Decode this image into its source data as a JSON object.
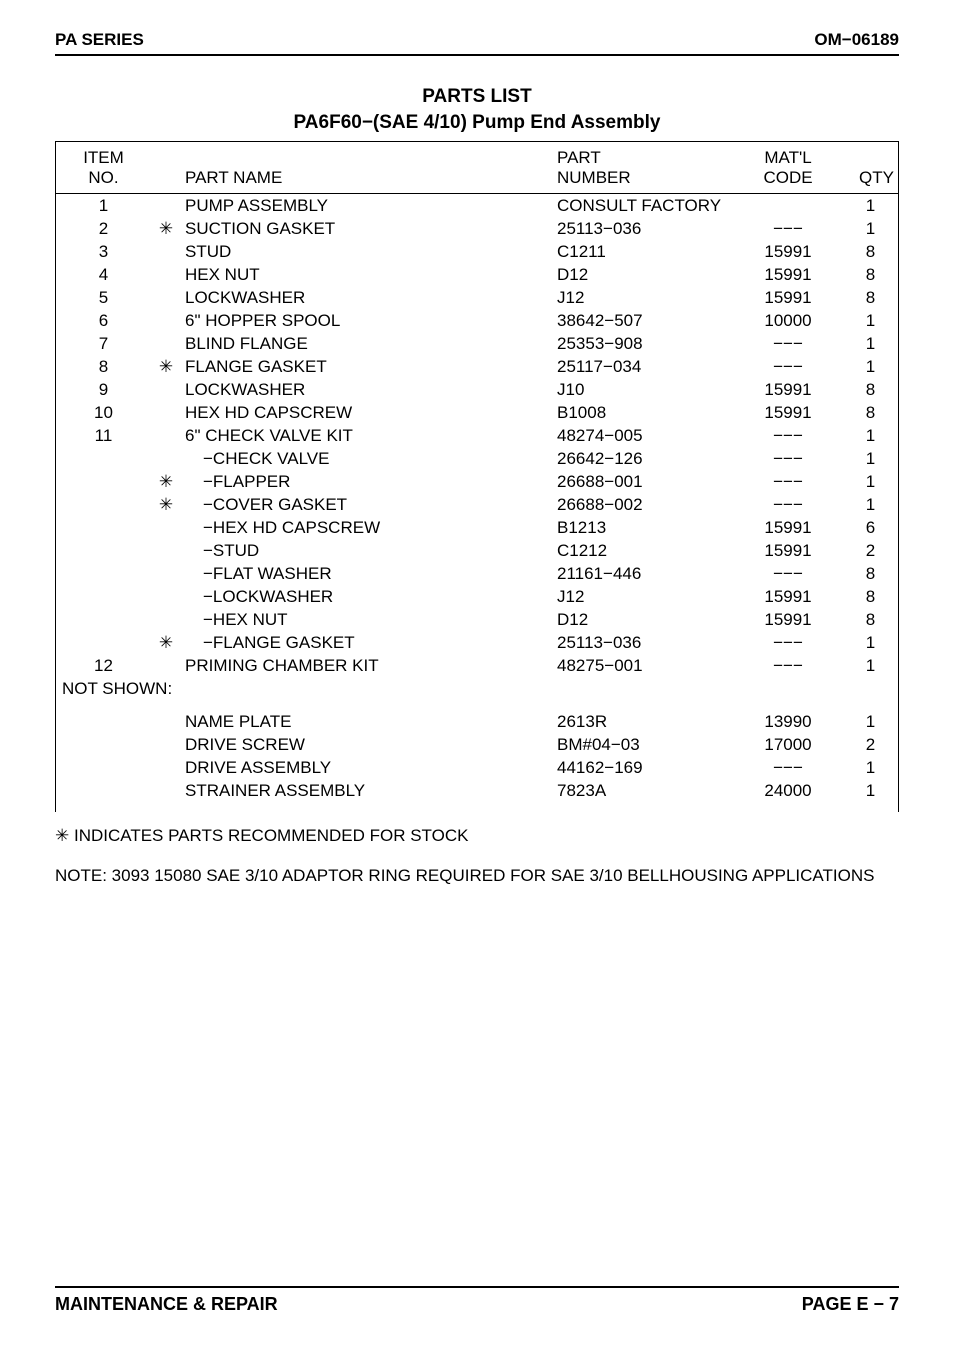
{
  "header": {
    "left": "PA SERIES",
    "right": "OM−06189"
  },
  "title": {
    "line1": "PARTS LIST",
    "line2": "PA6F60−(SAE 4/10) Pump End Assembly"
  },
  "columns": {
    "item": "ITEM\nNO.",
    "name": "PART NAME",
    "part": "PART\nNUMBER",
    "matl": "MAT'L\nCODE",
    "qty": "QTY"
  },
  "rows": [
    {
      "item": "1",
      "star": "",
      "name": "PUMP ASSEMBLY",
      "part": "CONSULT FACTORY",
      "matl": "",
      "qty": "1",
      "span_part": true
    },
    {
      "item": "2",
      "star": "✳",
      "name": "SUCTION GASKET",
      "part": "25113−036",
      "matl": "−−−",
      "qty": "1"
    },
    {
      "item": "3",
      "star": "",
      "name": "STUD",
      "part": "C1211",
      "matl": "15991",
      "qty": "8"
    },
    {
      "item": "4",
      "star": "",
      "name": "HEX NUT",
      "part": "D12",
      "matl": "15991",
      "qty": "8"
    },
    {
      "item": "5",
      "star": "",
      "name": "LOCKWASHER",
      "part": "J12",
      "matl": "15991",
      "qty": "8"
    },
    {
      "item": "6",
      "star": "",
      "name": "6\" HOPPER SPOOL",
      "part": "38642−507",
      "matl": "10000",
      "qty": "1"
    },
    {
      "item": "7",
      "star": "",
      "name": "BLIND FLANGE",
      "part": "25353−908",
      "matl": "−−−",
      "qty": "1"
    },
    {
      "item": "8",
      "star": "✳",
      "name": "FLANGE GASKET",
      "part": "25117−034",
      "matl": "−−−",
      "qty": "1"
    },
    {
      "item": "9",
      "star": "",
      "name": "LOCKWASHER",
      "part": "J10",
      "matl": "15991",
      "qty": "8"
    },
    {
      "item": "10",
      "star": "",
      "name": "HEX HD CAPSCREW",
      "part": "B1008",
      "matl": "15991",
      "qty": "8"
    },
    {
      "item": "11",
      "star": "",
      "name": "6\" CHECK VALVE KIT",
      "part": "48274−005",
      "matl": "−−−",
      "qty": "1"
    },
    {
      "item": "",
      "star": "",
      "name": "−CHECK VALVE",
      "part": "26642−126",
      "matl": "−−−",
      "qty": "1",
      "sub": true
    },
    {
      "item": "",
      "star": "✳",
      "name": "−FLAPPER",
      "part": "26688−001",
      "matl": "−−−",
      "qty": "1",
      "sub": true
    },
    {
      "item": "",
      "star": "✳",
      "name": "−COVER GASKET",
      "part": "26688−002",
      "matl": "−−−",
      "qty": "1",
      "sub": true
    },
    {
      "item": "",
      "star": "",
      "name": "−HEX HD CAPSCREW",
      "part": "B1213",
      "matl": "15991",
      "qty": "6",
      "sub": true
    },
    {
      "item": "",
      "star": "",
      "name": "−STUD",
      "part": "C1212",
      "matl": "15991",
      "qty": "2",
      "sub": true
    },
    {
      "item": "",
      "star": "",
      "name": "−FLAT WASHER",
      "part": "21161−446",
      "matl": "−−−",
      "qty": "8",
      "sub": true
    },
    {
      "item": "",
      "star": "",
      "name": "−LOCKWASHER",
      "part": "J12",
      "matl": "15991",
      "qty": "8",
      "sub": true
    },
    {
      "item": "",
      "star": "",
      "name": "−HEX NUT",
      "part": "D12",
      "matl": "15991",
      "qty": "8",
      "sub": true
    },
    {
      "item": "",
      "star": "✳",
      "name": "−FLANGE GASKET",
      "part": "25113−036",
      "matl": "−−−",
      "qty": "1",
      "sub": true
    },
    {
      "item": "12",
      "star": "",
      "name": "PRIMING CHAMBER KIT",
      "part": "48275−001",
      "matl": "−−−",
      "qty": "1"
    }
  ],
  "not_shown_label": "NOT SHOWN:",
  "not_shown_rows": [
    {
      "item": "",
      "star": "",
      "name": "NAME PLATE",
      "part": "2613R",
      "matl": "13990",
      "qty": "1"
    },
    {
      "item": "",
      "star": "",
      "name": "DRIVE SCREW",
      "part": "BM#04−03",
      "matl": "17000",
      "qty": "2"
    },
    {
      "item": "",
      "star": "",
      "name": "DRIVE ASSEMBLY",
      "part": "44162−169",
      "matl": "−−−",
      "qty": "1"
    },
    {
      "item": "",
      "star": "",
      "name": "STRAINER ASSEMBLY",
      "part": "7823A",
      "matl": "24000",
      "qty": "1"
    }
  ],
  "footnote": "✳ INDICATES PARTS RECOMMENDED FOR STOCK",
  "note": "NOTE: 3093 15080 SAE 3/10 ADAPTOR RING REQUIRED FOR SAE 3/10 BELLHOUSING APPLICATIONS",
  "footer": {
    "left": "MAINTENANCE & REPAIR",
    "right": "PAGE E − 7"
  }
}
